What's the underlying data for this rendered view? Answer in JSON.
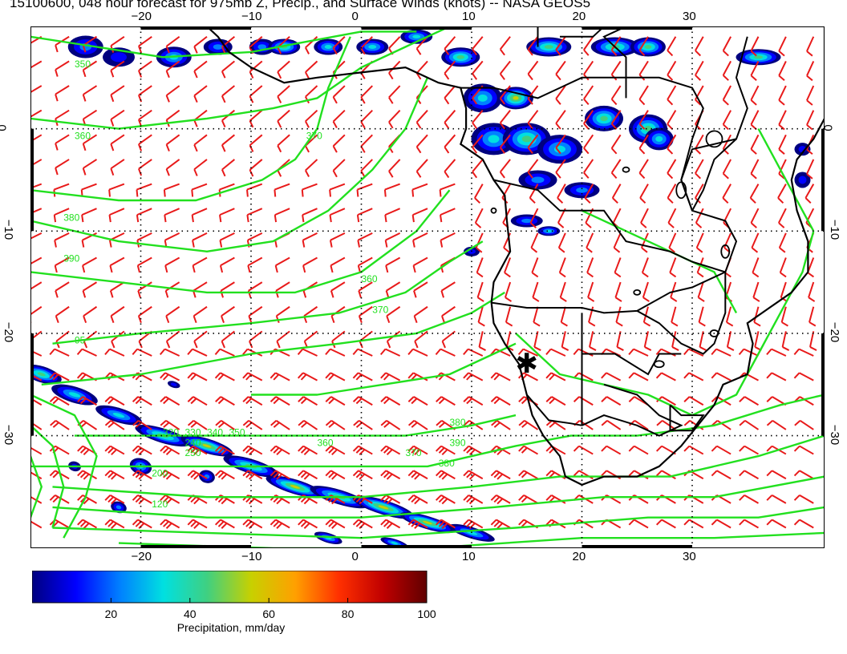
{
  "title": "15100600, 048 hour forecast for 975mb Z, Precip., and Surface Winds (knots) -- NASA GEOS5",
  "map": {
    "lon_range": [
      -30,
      42
    ],
    "lat_range": [
      -41,
      10
    ],
    "lon_ticks": [
      "−20",
      "−10",
      "0",
      "10",
      "20",
      "30"
    ],
    "lon_tick_values": [
      -20,
      -10,
      0,
      10,
      20,
      30
    ],
    "lat_ticks": [
      "0",
      "−10",
      "−20",
      "−30"
    ],
    "lat_tick_values": [
      0,
      -10,
      -20,
      -30
    ],
    "contour_labels": [
      "350",
      "360",
      "370",
      "380",
      "390",
      "95",
      "360",
      "370",
      "380",
      "390",
      "380",
      "370",
      "360",
      "350",
      "340",
      "330",
      "320",
      "240",
      "250",
      "200",
      "120"
    ],
    "contour_color": "#22e01f",
    "barb_color": "#e81a1a",
    "coast_color": "#000000",
    "marker_symbol": "✱",
    "marker_location": {
      "lon": 15,
      "lat": -23
    }
  },
  "colorbar": {
    "ticks": [
      "20",
      "40",
      "60",
      "80",
      "100"
    ],
    "tick_values": [
      20,
      40,
      60,
      80,
      100
    ],
    "range": [
      0,
      100
    ],
    "label": "Precipitation, mm/day",
    "colors": [
      "#00007f",
      "#0000ff",
      "#0080ff",
      "#00e0e0",
      "#40d080",
      "#c8d000",
      "#ffa000",
      "#ff3000",
      "#c00000",
      "#600000"
    ]
  }
}
